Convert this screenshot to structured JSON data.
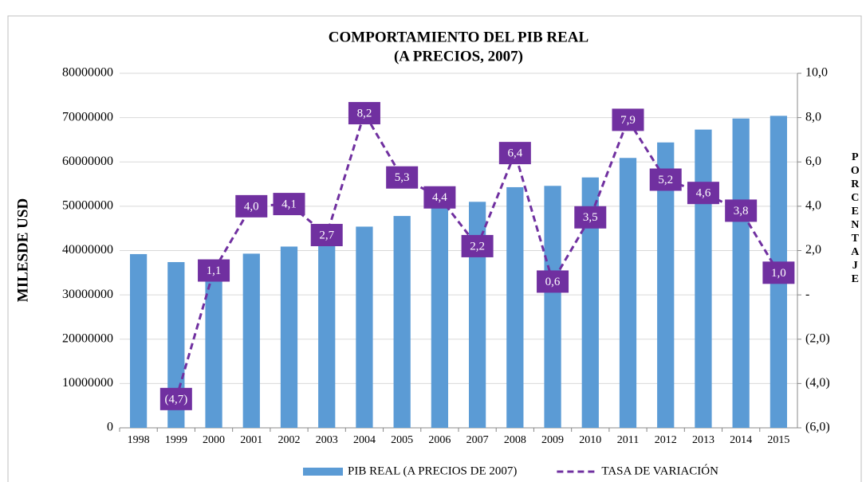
{
  "chart_data": {
    "type": "bar_line",
    "title": "COMPORTAMIENTO DEL PIB REAL",
    "subtitle": "(A PRECIOS, 2007)",
    "y_label": "MILESDE USD",
    "y2_label": "PORCENTAJE",
    "categories": [
      "1998",
      "1999",
      "2000",
      "2001",
      "2002",
      "2003",
      "2004",
      "2005",
      "2006",
      "2007",
      "2008",
      "2009",
      "2010",
      "2011",
      "2012",
      "2013",
      "2014",
      "2015"
    ],
    "series": [
      {
        "name": "PIB REAL (A PRECIOS DE 2007)",
        "color": "#5b9bd5",
        "type": "bar",
        "values": [
          39200000,
          37400000,
          37700000,
          39300000,
          40900000,
          42000000,
          45400000,
          47800000,
          49900000,
          51000000,
          54300000,
          54600000,
          56500000,
          60900000,
          64400000,
          67300000,
          69800000,
          70400000
        ]
      },
      {
        "name": "TASA DE VARIACIÓN",
        "color": "#7030a0",
        "type": "line",
        "axis": "y2",
        "values": [
          null,
          -4.7,
          1.1,
          4.0,
          4.1,
          2.7,
          8.2,
          5.3,
          4.4,
          2.2,
          6.4,
          0.6,
          3.5,
          7.9,
          5.2,
          4.6,
          3.8,
          1.0
        ],
        "value_labels": [
          null,
          "(4,7)",
          "1,1",
          "4,0",
          "4,1",
          "2,7",
          "8,2",
          "5,3",
          "4,4",
          "2,2",
          "6,4",
          "0,6",
          "3,5",
          "7,9",
          "5,2",
          "4,6",
          "3,8",
          "1,0"
        ]
      }
    ],
    "ylim": [
      0,
      80000000
    ],
    "yticks": [
      0,
      10000000,
      20000000,
      30000000,
      40000000,
      50000000,
      60000000,
      70000000,
      80000000
    ],
    "y2lim": [
      -6,
      10
    ],
    "y2ticks": [
      {
        "value": -6,
        "label": "(6,0)"
      },
      {
        "value": -4,
        "label": "(4,0)"
      },
      {
        "value": -2,
        "label": "(2,0)"
      },
      {
        "value": 0,
        "label": "-"
      },
      {
        "value": 2,
        "label": "2,0"
      },
      {
        "value": 4,
        "label": "4,0"
      },
      {
        "value": 6,
        "label": "6,0"
      },
      {
        "value": 8,
        "label": "8,0"
      },
      {
        "value": 10,
        "label": "10,0"
      }
    ],
    "grid": true,
    "legend": "bottom"
  }
}
